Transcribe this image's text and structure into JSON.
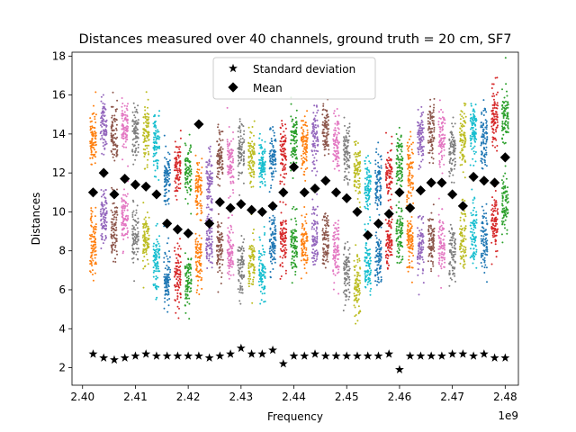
{
  "chart_data": {
    "type": "scatter",
    "title": "Distances measured over 40 channels, ground truth = 20 cm, SF7",
    "xlabel": "Frequency",
    "ylabel": "Distances",
    "x_offset_label": "1e9",
    "xlim": [
      2.398,
      2.4825
    ],
    "ylim": [
      1.1,
      18.2
    ],
    "x_ticks": [
      2.4,
      2.41,
      2.42,
      2.43,
      2.44,
      2.45,
      2.46,
      2.47,
      2.48
    ],
    "x_tick_labels": [
      "2.40",
      "2.41",
      "2.42",
      "2.43",
      "2.44",
      "2.45",
      "2.46",
      "2.47",
      "2.48"
    ],
    "y_ticks": [
      2,
      4,
      6,
      8,
      10,
      12,
      14,
      16,
      18
    ],
    "y_tick_labels": [
      "2",
      "4",
      "6",
      "8",
      "10",
      "12",
      "14",
      "16",
      "18"
    ],
    "grid": false,
    "legend_position": "top-center",
    "channel_colors": [
      "#ff7f0e",
      "#9467bd",
      "#8c564b",
      "#e377c2",
      "#7f7f7f",
      "#bcbd22",
      "#17becf",
      "#1f77b4",
      "#d62728",
      "#2ca02c"
    ],
    "channels": {
      "frequency": [
        2.402,
        2.404,
        2.406,
        2.408,
        2.41,
        2.412,
        2.414,
        2.416,
        2.418,
        2.42,
        2.422,
        2.424,
        2.426,
        2.428,
        2.43,
        2.432,
        2.434,
        2.436,
        2.438,
        2.44,
        2.442,
        2.444,
        2.446,
        2.448,
        2.45,
        2.452,
        2.454,
        2.456,
        2.458,
        2.46,
        2.462,
        2.464,
        2.466,
        2.468,
        2.47,
        2.472,
        2.474,
        2.476,
        2.478,
        2.48
      ],
      "upper_cluster_center": [
        13.8,
        14.5,
        13.9,
        14.2,
        14.0,
        13.8,
        13.6,
        11.8,
        12.2,
        12.0,
        11.2,
        11.5,
        12.8,
        12.5,
        13.2,
        12.8,
        12.3,
        12.8,
        13.0,
        13.8,
        13.5,
        13.8,
        14.1,
        13.6,
        13.0,
        12.0,
        11.2,
        11.6,
        12.2,
        12.6,
        12.0,
        13.8,
        14.0,
        13.8,
        13.3,
        13.8,
        14.1,
        13.8,
        14.8,
        14.7
      ],
      "lower_cluster_center": [
        8.4,
        9.6,
        9.2,
        9.7,
        8.7,
        8.6,
        7.5,
        6.6,
        6.8,
        6.4,
        7.5,
        8.5,
        8.2,
        7.9,
        7.2,
        7.4,
        7.0,
        8.4,
        8.6,
        8.2,
        8.4,
        8.8,
        8.5,
        8.0,
        6.8,
        6.2,
        7.2,
        7.6,
        8.4,
        8.8,
        8.5,
        8.3,
        8.6,
        8.3,
        7.9,
        8.6,
        9.0,
        8.5,
        9.5,
        10.5
      ],
      "mean": [
        11.0,
        12.0,
        10.9,
        11.7,
        11.4,
        11.3,
        10.9,
        9.4,
        9.1,
        8.9,
        14.5,
        9.4,
        10.5,
        10.2,
        10.4,
        10.1,
        10.0,
        10.3,
        11.0,
        12.3,
        11.0,
        11.2,
        11.6,
        11.0,
        10.7,
        10.0,
        8.8,
        9.4,
        9.9,
        11.0,
        10.2,
        11.1,
        11.5,
        11.5,
        10.9,
        10.3,
        11.8,
        11.6,
        11.5,
        12.8
      ]
    },
    "series": [
      {
        "name": "Standard deviation",
        "marker": "star",
        "x": [
          2.402,
          2.404,
          2.406,
          2.408,
          2.41,
          2.412,
          2.414,
          2.416,
          2.418,
          2.42,
          2.422,
          2.424,
          2.426,
          2.428,
          2.43,
          2.432,
          2.434,
          2.436,
          2.438,
          2.44,
          2.442,
          2.444,
          2.446,
          2.448,
          2.45,
          2.452,
          2.454,
          2.456,
          2.458,
          2.46,
          2.462,
          2.464,
          2.466,
          2.468,
          2.47,
          2.472,
          2.474,
          2.476,
          2.478,
          2.48
        ],
        "y": [
          2.7,
          2.5,
          2.4,
          2.5,
          2.6,
          2.7,
          2.6,
          2.6,
          2.6,
          2.6,
          2.6,
          2.5,
          2.6,
          2.7,
          3.0,
          2.7,
          2.7,
          2.9,
          2.2,
          2.6,
          2.6,
          2.7,
          2.6,
          2.6,
          2.6,
          2.6,
          2.6,
          2.6,
          2.7,
          1.9,
          2.6,
          2.6,
          2.6,
          2.6,
          2.7,
          2.7,
          2.6,
          2.7,
          2.5,
          2.5
        ]
      },
      {
        "name": "Mean",
        "marker": "diamond",
        "x": [
          2.402,
          2.404,
          2.406,
          2.408,
          2.41,
          2.412,
          2.414,
          2.416,
          2.418,
          2.42,
          2.422,
          2.424,
          2.426,
          2.428,
          2.43,
          2.432,
          2.434,
          2.436,
          2.438,
          2.44,
          2.442,
          2.444,
          2.446,
          2.448,
          2.45,
          2.452,
          2.454,
          2.456,
          2.458,
          2.46,
          2.462,
          2.464,
          2.466,
          2.468,
          2.47,
          2.472,
          2.474,
          2.476,
          2.478,
          2.48
        ],
        "y": [
          11.0,
          12.0,
          10.9,
          11.7,
          11.4,
          11.3,
          10.9,
          9.4,
          9.1,
          8.9,
          14.5,
          9.4,
          10.5,
          10.2,
          10.4,
          10.1,
          10.0,
          10.3,
          11.0,
          12.3,
          11.0,
          11.2,
          11.6,
          11.0,
          10.7,
          10.0,
          8.8,
          9.4,
          9.9,
          11.0,
          10.2,
          11.1,
          11.5,
          11.5,
          10.9,
          10.3,
          11.8,
          11.6,
          11.5,
          12.8
        ]
      }
    ]
  }
}
